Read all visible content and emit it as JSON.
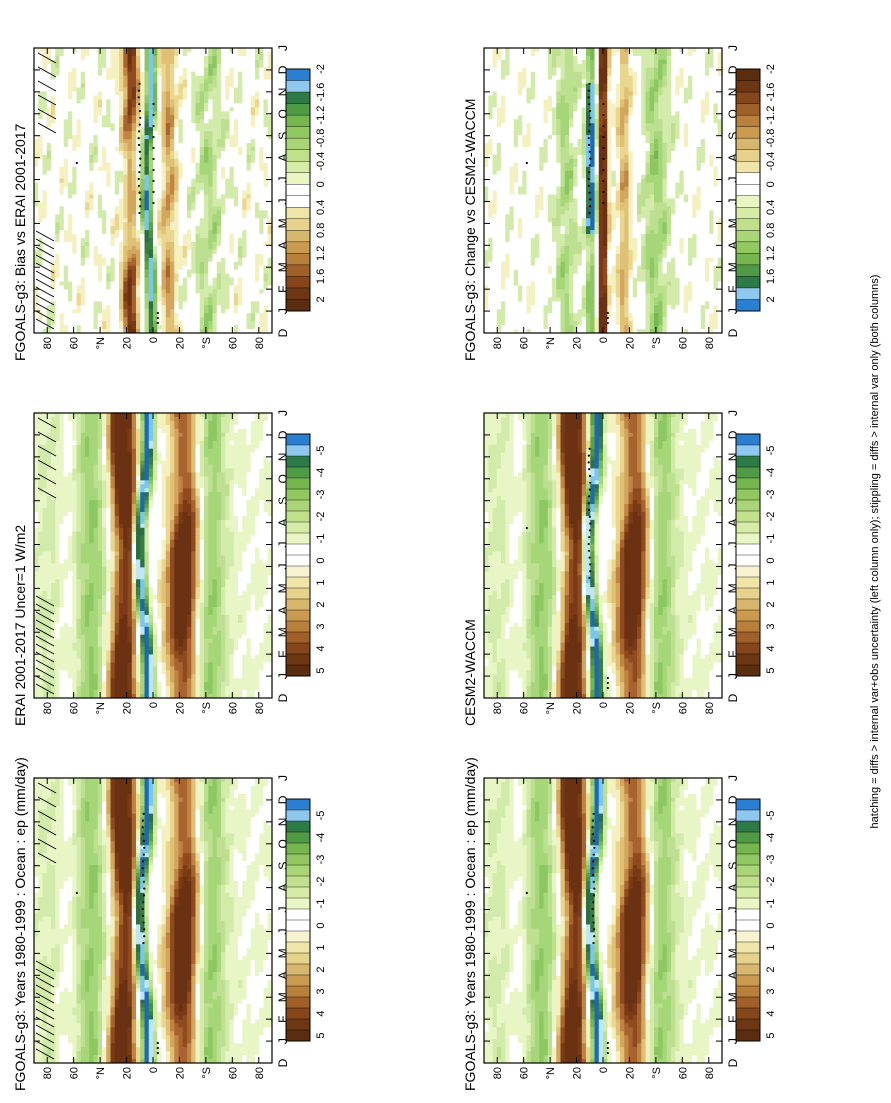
{
  "footnote": "hatching = diffs > internal var+obs uncertainty (left column only); stippling = diffs > internal var only (both columns)",
  "palettes": {
    "precip": [
      "#ffffff",
      "#f5f0c0",
      "#ead68e",
      "#dfc075",
      "#d4a55c",
      "#c08443",
      "#a8642e",
      "#8f4a1f",
      "#7a3a17",
      "#6a3213"
    ],
    "wet": [
      "#e8f5c4",
      "#d2ebaa",
      "#bde090",
      "#a5d678",
      "#8cc762",
      "#74b84e",
      "#5ea33e",
      "#4c9140",
      "#3b7e43",
      "#2b6f46"
    ],
    "neg": [
      "#bde6f7",
      "#79c6ee",
      "#3a8fd4",
      "#1c68b6"
    ]
  },
  "chart_data": [
    {
      "type": "heatmap",
      "title": "FGOALS-g3: Years 1980-1999 : Ocean : ep (mm/day)",
      "field": "mean",
      "x": [
        "D",
        "J",
        "F",
        "M",
        "A",
        "M",
        "J",
        "J",
        "A",
        "S",
        "O",
        "N",
        "D",
        "J"
      ],
      "y": [
        "80",
        "60",
        "°N",
        "20",
        "0",
        "20",
        "°S",
        "60",
        "80"
      ],
      "hatching": true,
      "stippling": "model",
      "colorbar": {
        "labels": [
          "5",
          "4",
          "3",
          "2",
          "1",
          "0",
          "-1",
          "-2",
          "-3",
          "-4",
          "-5"
        ],
        "swatches": [
          "#5b2d0f",
          "#6e3714",
          "#86461c",
          "#a06029",
          "#b8803a",
          "#c99a4f",
          "#d7b76d",
          "#e6d28b",
          "#f0e5a8",
          "#f7f3d0",
          "#ffffff",
          "#ffffff",
          "#eaf5c4",
          "#d6eca6",
          "#c0e08c",
          "#a9d576",
          "#91c862",
          "#75b64f",
          "#4f9a45",
          "#2c7a46",
          "#8ec8ef",
          "#2b7fd0"
        ],
        "reversed": false
      }
    },
    {
      "type": "heatmap",
      "title": "FGOALS-g3: Years 1980-1999 : Ocean : ep (mm/day)",
      "field": "mean",
      "x": [
        "D",
        "J",
        "F",
        "M",
        "A",
        "M",
        "J",
        "J",
        "A",
        "S",
        "O",
        "N",
        "D",
        "J"
      ],
      "y": [
        "80",
        "60",
        "°N",
        "20",
        "0",
        "20",
        "°S",
        "60",
        "80"
      ],
      "hatching": false,
      "stippling": "model",
      "colorbar": {
        "labels": [
          "5",
          "4",
          "3",
          "2",
          "1",
          "0",
          "-1",
          "-2",
          "-3",
          "-4",
          "-5"
        ],
        "swatches": [
          "#5b2d0f",
          "#6e3714",
          "#86461c",
          "#a06029",
          "#b8803a",
          "#c99a4f",
          "#d7b76d",
          "#e6d28b",
          "#f0e5a8",
          "#f7f3d0",
          "#ffffff",
          "#ffffff",
          "#eaf5c4",
          "#d6eca6",
          "#c0e08c",
          "#a9d576",
          "#91c862",
          "#75b64f",
          "#4f9a45",
          "#2c7a46",
          "#8ec8ef",
          "#2b7fd0"
        ],
        "reversed": false
      }
    },
    {
      "type": "heatmap",
      "title": "ERAI 2001-2017 Uncer=1 W/m2",
      "field": "mean",
      "x": [
        "D",
        "J",
        "F",
        "M",
        "A",
        "M",
        "J",
        "J",
        "A",
        "S",
        "O",
        "N",
        "D",
        "J"
      ],
      "y": [
        "80",
        "60",
        "°N",
        "20",
        "0",
        "20",
        "°S",
        "60",
        "80"
      ],
      "hatching": true,
      "stippling": "none",
      "colorbar": {
        "labels": [
          "5",
          "4",
          "3",
          "2",
          "1",
          "0",
          "-1",
          "-2",
          "-3",
          "-4",
          "-5"
        ],
        "swatches": [
          "#5b2d0f",
          "#6e3714",
          "#86461c",
          "#a06029",
          "#b8803a",
          "#c99a4f",
          "#d7b76d",
          "#e6d28b",
          "#f0e5a8",
          "#f7f3d0",
          "#ffffff",
          "#ffffff",
          "#eaf5c4",
          "#d6eca6",
          "#c0e08c",
          "#a9d576",
          "#91c862",
          "#75b64f",
          "#4f9a45",
          "#2c7a46",
          "#8ec8ef",
          "#2b7fd0"
        ],
        "reversed": false
      }
    },
    {
      "type": "heatmap",
      "title": "CESM2-WACCM",
      "field": "mean",
      "x": [
        "D",
        "J",
        "F",
        "M",
        "A",
        "M",
        "J",
        "J",
        "A",
        "S",
        "O",
        "N",
        "D",
        "J"
      ],
      "y": [
        "80",
        "60",
        "°N",
        "20",
        "0",
        "20",
        "°S",
        "60",
        "80"
      ],
      "hatching": false,
      "stippling": "ref",
      "colorbar": {
        "labels": [
          "5",
          "4",
          "3",
          "2",
          "1",
          "0",
          "-1",
          "-2",
          "-3",
          "-4",
          "-5"
        ],
        "swatches": [
          "#5b2d0f",
          "#6e3714",
          "#86461c",
          "#a06029",
          "#b8803a",
          "#c99a4f",
          "#d7b76d",
          "#e6d28b",
          "#f0e5a8",
          "#f7f3d0",
          "#ffffff",
          "#ffffff",
          "#eaf5c4",
          "#d6eca6",
          "#c0e08c",
          "#a9d576",
          "#91c862",
          "#75b64f",
          "#4f9a45",
          "#2c7a46",
          "#8ec8ef",
          "#2b7fd0"
        ],
        "reversed": false
      }
    },
    {
      "type": "heatmap",
      "title": "FGOALS-g3: Bias vs ERAI 2001-2017",
      "field": "diff",
      "x": [
        "D",
        "J",
        "F",
        "M",
        "A",
        "M",
        "J",
        "J",
        "A",
        "S",
        "O",
        "N",
        "D",
        "J"
      ],
      "y": [
        "80",
        "60",
        "°N",
        "20",
        "0",
        "20",
        "°S",
        "60",
        "80"
      ],
      "hatching": true,
      "stippling": "diff",
      "colorbar": {
        "labels": [
          "2",
          "1.6",
          "1.2",
          "0.8",
          "0.4",
          "0",
          "-0.4",
          "-0.8",
          "-1.2",
          "-1.6",
          "-2"
        ],
        "swatches": [
          "#5b2d0f",
          "#6e3714",
          "#86461c",
          "#a06029",
          "#b8803a",
          "#c99a4f",
          "#d7b76d",
          "#e6d28b",
          "#f0e5a8",
          "#ffffff",
          "#ffffff",
          "#eaf5c4",
          "#d6eca6",
          "#c0e08c",
          "#a9d576",
          "#91c862",
          "#75b64f",
          "#4f9a45",
          "#2c7a46",
          "#8ec8ef",
          "#2b7fd0"
        ],
        "reversed": false
      }
    },
    {
      "type": "heatmap",
      "title": "FGOALS-g3: Change vs CESM2-WACCM",
      "field": "diff",
      "x": [
        "D",
        "J",
        "F",
        "M",
        "A",
        "M",
        "J",
        "J",
        "A",
        "S",
        "O",
        "N",
        "D",
        "J"
      ],
      "y": [
        "80",
        "60",
        "°N",
        "20",
        "0",
        "20",
        "°S",
        "60",
        "80"
      ],
      "hatching": false,
      "stippling": "diff",
      "colorbar": {
        "labels": [
          "2",
          "1.6",
          "1.2",
          "0.8",
          "0.4",
          "0",
          "-0.4",
          "-0.8",
          "-1.2",
          "-1.6",
          "-2"
        ],
        "swatches": [
          "#5b2d0f",
          "#6e3714",
          "#86461c",
          "#a06029",
          "#b8803a",
          "#c99a4f",
          "#d7b76d",
          "#e6d28b",
          "#f0e5a8",
          "#ffffff",
          "#ffffff",
          "#eaf5c4",
          "#d6eca6",
          "#c0e08c",
          "#a9d576",
          "#91c862",
          "#75b64f",
          "#4f9a45",
          "#2c7a46",
          "#8ec8ef",
          "#2b7fd0"
        ],
        "reversed": true
      }
    }
  ]
}
